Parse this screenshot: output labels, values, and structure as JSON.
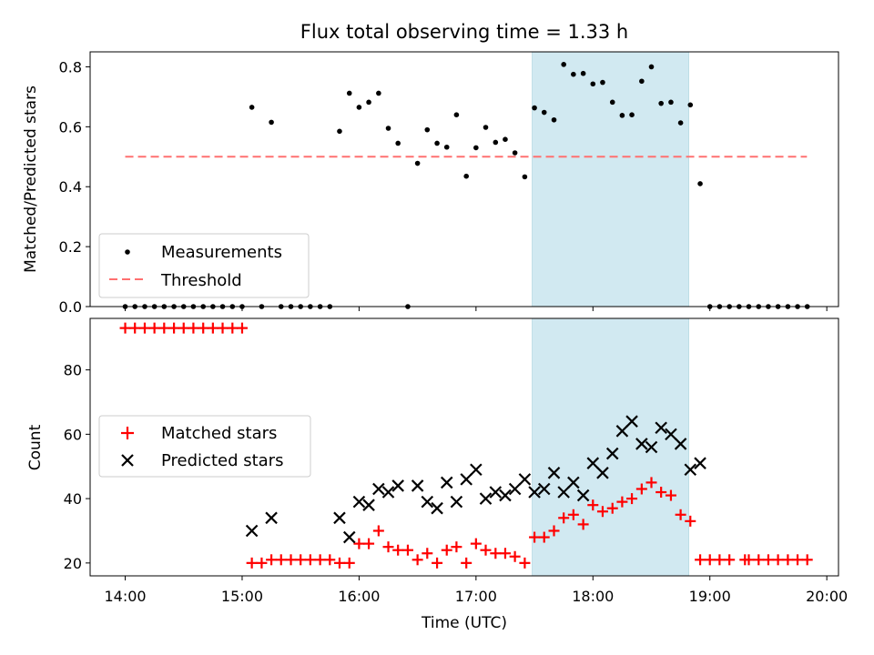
{
  "chart_data": [
    {
      "type": "scatter",
      "title": "Flux total observing time = 1.33 h",
      "xlabel": "",
      "ylabel": "Matched/Predicted stars",
      "ylim": [
        0,
        0.85
      ],
      "yticks": [
        "0.0",
        "0.2",
        "0.4",
        "0.6",
        "0.8"
      ],
      "ytick_values": [
        0,
        0.2,
        0.4,
        0.6,
        0.8
      ],
      "legend_position": "lower-left",
      "highlight_span_hours": [
        17.48,
        18.82
      ],
      "highlight_color": "#add8e6",
      "threshold": {
        "name": "Threshold",
        "y": 0.5,
        "x_range_hours": [
          14.0,
          19.83
        ],
        "color": "#ff7070",
        "style": "dashed"
      },
      "series": [
        {
          "name": "Measurements",
          "color": "#000000",
          "marker": "dot",
          "x_hours": [
            14.0,
            14.083,
            14.167,
            14.25,
            14.333,
            14.417,
            14.5,
            14.583,
            14.667,
            14.75,
            14.833,
            14.917,
            15.0,
            15.083,
            15.167,
            15.25,
            15.333,
            15.417,
            15.5,
            15.583,
            15.667,
            15.75,
            15.833,
            15.917,
            16.0,
            16.083,
            16.167,
            16.25,
            16.333,
            16.417,
            16.5,
            16.583,
            16.667,
            16.75,
            16.833,
            16.917,
            17.0,
            17.083,
            17.167,
            17.25,
            17.333,
            17.417,
            17.5,
            17.583,
            17.667,
            17.75,
            17.833,
            17.917,
            18.0,
            18.083,
            18.167,
            18.25,
            18.333,
            18.417,
            18.5,
            18.583,
            18.667,
            18.75,
            18.833,
            18.917,
            19.0,
            19.083,
            19.167,
            19.25,
            19.333,
            19.417,
            19.5,
            19.583,
            19.667,
            19.75,
            19.833
          ],
          "y": [
            0,
            0,
            0,
            0,
            0,
            0,
            0,
            0,
            0,
            0,
            0,
            0,
            0,
            0.665,
            0,
            0.615,
            0,
            0,
            0,
            0,
            0,
            0,
            0.585,
            0.712,
            0.665,
            0.682,
            0.712,
            0.595,
            0.545,
            0,
            0.478,
            0.59,
            0.545,
            0.532,
            0.64,
            0.435,
            0.53,
            0.598,
            0.548,
            0.558,
            0.513,
            0.433,
            0.663,
            0.648,
            0.623,
            0.808,
            0.775,
            0.778,
            0.743,
            0.748,
            0.682,
            0.638,
            0.64,
            0.752,
            0.8,
            0.678,
            0.682,
            0.613,
            0.673,
            0.41,
            0,
            0,
            0,
            0,
            0,
            0,
            0,
            0,
            0,
            0,
            0
          ]
        }
      ]
    },
    {
      "type": "scatter",
      "title": "",
      "xlabel": "Time (UTC)",
      "ylabel": "Count",
      "ylim": [
        16,
        96
      ],
      "yticks": [
        "20",
        "40",
        "60",
        "80"
      ],
      "ytick_values": [
        20,
        40,
        60,
        80
      ],
      "xlim_hours": [
        13.7,
        20.1
      ],
      "xticks": [
        "14:00",
        "15:00",
        "16:00",
        "17:00",
        "18:00",
        "19:00",
        "20:00"
      ],
      "xtick_values": [
        14,
        15,
        16,
        17,
        18,
        19,
        20
      ],
      "legend_position": "center-left",
      "highlight_span_hours": [
        17.48,
        18.82
      ],
      "series": [
        {
          "name": "Matched stars",
          "color": "#ff0000",
          "marker": "plus",
          "x_hours": [
            14.0,
            14.083,
            14.167,
            14.25,
            14.333,
            14.417,
            14.5,
            14.583,
            14.667,
            14.75,
            14.833,
            14.917,
            15.0,
            15.083,
            15.167,
            15.25,
            15.333,
            15.417,
            15.5,
            15.583,
            15.667,
            15.75,
            15.833,
            15.917,
            16.0,
            16.083,
            16.167,
            16.25,
            16.333,
            16.417,
            16.5,
            16.583,
            16.667,
            16.75,
            16.833,
            16.917,
            17.0,
            17.083,
            17.167,
            17.25,
            17.333,
            17.417,
            17.5,
            17.583,
            17.667,
            17.75,
            17.833,
            17.917,
            18.0,
            18.083,
            18.167,
            18.25,
            18.333,
            18.417,
            18.5,
            18.583,
            18.667,
            18.75,
            18.833,
            18.917,
            19.0,
            19.083,
            19.167,
            19.333,
            19.417,
            19.5,
            19.583,
            19.667,
            19.75,
            19.833
          ],
          "y": [
            93,
            93,
            93,
            93,
            93,
            93,
            93,
            93,
            93,
            93,
            93,
            93,
            93,
            20,
            20,
            21,
            21,
            21,
            21,
            21,
            21,
            21,
            20,
            20,
            26,
            26,
            30,
            25,
            24,
            24,
            21,
            23,
            20,
            24,
            25,
            20,
            26,
            24,
            23,
            23,
            22,
            20,
            28,
            28,
            30,
            34,
            35,
            32,
            38,
            36,
            37,
            39,
            40,
            43,
            45,
            42,
            41,
            35,
            33,
            21,
            21,
            21,
            21,
            21,
            21,
            21,
            21,
            21,
            21,
            21
          ],
          "x_hours_extra": [
            19.3
          ]
        },
        {
          "name": "Predicted stars",
          "color": "#000000",
          "marker": "x",
          "x_hours": [
            15.083,
            15.25,
            15.833,
            15.917,
            16.0,
            16.083,
            16.167,
            16.25,
            16.333,
            16.5,
            16.583,
            16.667,
            16.75,
            16.833,
            16.917,
            17.0,
            17.083,
            17.167,
            17.25,
            17.333,
            17.417,
            17.5,
            17.583,
            17.667,
            17.75,
            17.833,
            17.917,
            18.0,
            18.083,
            18.167,
            18.25,
            18.333,
            18.417,
            18.5,
            18.583,
            18.667,
            18.75,
            18.833,
            18.917
          ],
          "y": [
            30,
            34,
            34,
            28,
            39,
            38,
            43,
            42,
            44,
            44,
            39,
            37,
            45,
            39,
            46,
            49,
            40,
            42,
            41,
            43,
            46,
            42,
            43,
            48,
            42,
            45,
            41,
            51,
            48,
            54,
            61,
            64,
            57,
            56,
            62,
            60,
            57,
            49,
            51
          ]
        }
      ]
    }
  ]
}
